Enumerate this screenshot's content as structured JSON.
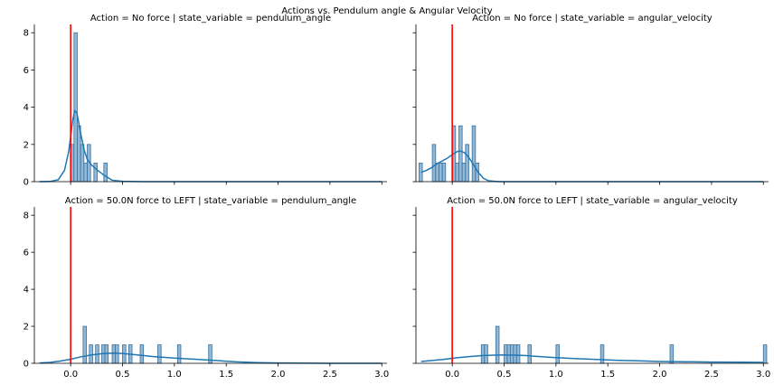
{
  "figure": {
    "title": "Actions vs. Pendulum angle & Angular Velocity",
    "ylim": [
      0,
      8.4
    ],
    "xlim": [
      -0.35,
      3.05
    ],
    "yticks": [
      0,
      2,
      4,
      6,
      8
    ],
    "xticks": [
      0.0,
      0.5,
      1.0,
      1.5,
      2.0,
      2.5,
      3.0
    ],
    "xtick_labels": [
      "0.0",
      "0.5",
      "1.0",
      "1.5",
      "2.0",
      "2.5",
      "3.0"
    ],
    "colors": {
      "bar_fill": "#8fb8d9",
      "bar_edge": "#3d6f97",
      "kde": "#1f77b4",
      "vline": "#ff0000",
      "axis": "#000000"
    }
  },
  "chart_data": [
    {
      "type": "bar",
      "title": "Action = No force | state_variable = pendulum_angle",
      "vline_x": 0,
      "bar_width": 0.032,
      "bars": [
        {
          "x": 0.0,
          "value": 2
        },
        {
          "x": 0.032,
          "value": 8
        },
        {
          "x": 0.064,
          "value": 3
        },
        {
          "x": 0.096,
          "value": 2
        },
        {
          "x": 0.128,
          "value": 1
        },
        {
          "x": 0.16,
          "value": 2
        },
        {
          "x": 0.224,
          "value": 1
        },
        {
          "x": 0.32,
          "value": 1
        }
      ],
      "kde": {
        "x": [
          -0.3,
          -0.2,
          -0.12,
          -0.06,
          -0.02,
          0.0,
          0.02,
          0.04,
          0.06,
          0.08,
          0.1,
          0.13,
          0.16,
          0.2,
          0.26,
          0.32,
          0.4,
          0.5,
          0.7,
          1.0,
          3.0
        ],
        "y": [
          0.0,
          0.01,
          0.1,
          0.6,
          1.6,
          2.4,
          3.3,
          3.8,
          3.7,
          3.1,
          2.5,
          1.7,
          1.2,
          0.9,
          0.6,
          0.35,
          0.08,
          0.02,
          0.0,
          0.0,
          0.0
        ]
      }
    },
    {
      "type": "bar",
      "title": "Action = No force | state_variable = angular_velocity",
      "vline_x": 0,
      "bar_width": 0.032,
      "bars": [
        {
          "x": -0.32,
          "value": 1
        },
        {
          "x": -0.192,
          "value": 2
        },
        {
          "x": -0.16,
          "value": 1
        },
        {
          "x": -0.128,
          "value": 1
        },
        {
          "x": -0.096,
          "value": 1
        },
        {
          "x": 0.0,
          "value": 3
        },
        {
          "x": 0.032,
          "value": 1
        },
        {
          "x": 0.064,
          "value": 3
        },
        {
          "x": 0.096,
          "value": 1
        },
        {
          "x": 0.128,
          "value": 2
        },
        {
          "x": 0.192,
          "value": 3
        },
        {
          "x": 0.224,
          "value": 1
        }
      ],
      "kde": {
        "x": [
          -0.3,
          -0.25,
          -0.2,
          -0.15,
          -0.1,
          -0.05,
          0.0,
          0.05,
          0.08,
          0.12,
          0.16,
          0.2,
          0.25,
          0.3,
          0.35,
          0.45,
          0.6,
          3.0
        ],
        "y": [
          0.5,
          0.6,
          0.75,
          0.95,
          1.1,
          1.25,
          1.45,
          1.62,
          1.65,
          1.55,
          1.3,
          0.95,
          0.5,
          0.18,
          0.05,
          0.0,
          0.0,
          0.0
        ]
      }
    },
    {
      "type": "bar",
      "title": "Action = 50.0N force to LEFT | state_variable = pendulum_angle",
      "vline_x": 0,
      "bar_width": 0.032,
      "bars": [
        {
          "x": 0.12,
          "value": 2
        },
        {
          "x": 0.18,
          "value": 1
        },
        {
          "x": 0.24,
          "value": 1
        },
        {
          "x": 0.3,
          "value": 1
        },
        {
          "x": 0.33,
          "value": 1
        },
        {
          "x": 0.4,
          "value": 1
        },
        {
          "x": 0.43,
          "value": 1
        },
        {
          "x": 0.5,
          "value": 1
        },
        {
          "x": 0.56,
          "value": 1
        },
        {
          "x": 0.67,
          "value": 1
        },
        {
          "x": 0.84,
          "value": 1
        },
        {
          "x": 1.03,
          "value": 1
        },
        {
          "x": 1.33,
          "value": 1
        }
      ],
      "kde": {
        "x": [
          -0.3,
          -0.2,
          -0.1,
          0.0,
          0.1,
          0.2,
          0.3,
          0.4,
          0.5,
          0.6,
          0.7,
          0.8,
          0.9,
          1.0,
          1.2,
          1.4,
          1.6,
          1.8,
          2.0,
          2.5,
          3.0
        ],
        "y": [
          0.02,
          0.05,
          0.12,
          0.22,
          0.35,
          0.45,
          0.52,
          0.55,
          0.53,
          0.48,
          0.42,
          0.36,
          0.32,
          0.28,
          0.22,
          0.15,
          0.08,
          0.04,
          0.02,
          0.0,
          0.0
        ]
      }
    },
    {
      "type": "bar",
      "title": "Action = 50.0N force to LEFT | state_variable = angular_velocity",
      "vline_x": 0,
      "bar_width": 0.032,
      "bars": [
        {
          "x": 0.28,
          "value": 1
        },
        {
          "x": 0.31,
          "value": 1
        },
        {
          "x": 0.42,
          "value": 2
        },
        {
          "x": 0.5,
          "value": 1
        },
        {
          "x": 0.53,
          "value": 1
        },
        {
          "x": 0.56,
          "value": 1
        },
        {
          "x": 0.59,
          "value": 1
        },
        {
          "x": 0.62,
          "value": 1
        },
        {
          "x": 0.73,
          "value": 1
        },
        {
          "x": 1.0,
          "value": 1
        },
        {
          "x": 1.43,
          "value": 1
        },
        {
          "x": 2.1,
          "value": 1
        },
        {
          "x": 3.0,
          "value": 1
        }
      ],
      "kde": {
        "x": [
          -0.3,
          -0.1,
          0.0,
          0.1,
          0.2,
          0.3,
          0.4,
          0.5,
          0.6,
          0.7,
          0.8,
          1.0,
          1.2,
          1.4,
          1.6,
          1.8,
          2.0,
          2.2,
          2.5,
          2.8,
          3.0
        ],
        "y": [
          0.1,
          0.2,
          0.27,
          0.33,
          0.38,
          0.42,
          0.44,
          0.45,
          0.44,
          0.42,
          0.38,
          0.31,
          0.25,
          0.21,
          0.16,
          0.13,
          0.1,
          0.09,
          0.07,
          0.06,
          0.05
        ]
      }
    }
  ]
}
